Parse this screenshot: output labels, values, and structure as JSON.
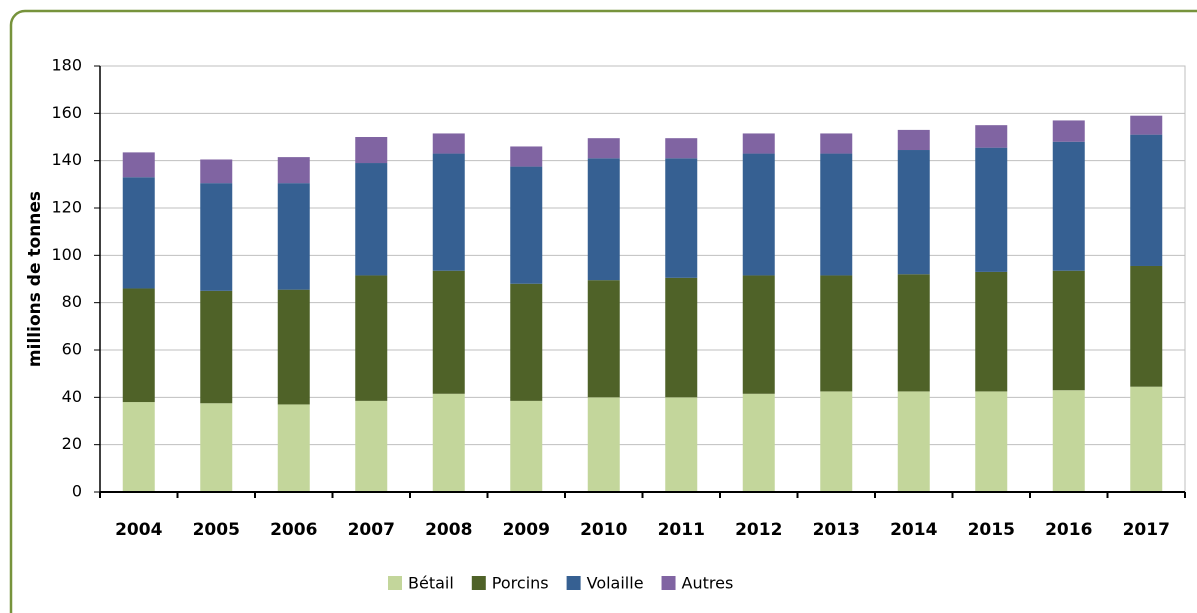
{
  "chart_data": {
    "type": "stacked_bar",
    "ylabel": "millions de tonnes",
    "categories": [
      "2004",
      "2005",
      "2006",
      "2007",
      "2008",
      "2009",
      "2010",
      "2011",
      "2012",
      "2013",
      "2014",
      "2015",
      "2016",
      "2017"
    ],
    "series": [
      {
        "name": "Bétail",
        "color": "#c3d69b",
        "values": [
          38,
          37.5,
          37,
          38.5,
          41.5,
          38.5,
          40,
          40,
          41.5,
          42.5,
          42.5,
          42.5,
          43,
          44.5
        ]
      },
      {
        "name": "Porcins",
        "color": "#4f6228",
        "values": [
          48,
          47.5,
          48.5,
          53,
          52,
          49.5,
          49.5,
          50.5,
          50,
          49,
          49.5,
          50.5,
          50.5,
          51
        ]
      },
      {
        "name": "Volaille",
        "color": "#366092",
        "values": [
          47,
          45.5,
          45,
          47.5,
          49.5,
          49.5,
          51.5,
          50.5,
          51.5,
          51.5,
          52.5,
          52.5,
          54.5,
          55.5
        ]
      },
      {
        "name": "Autres",
        "color": "#8064a2",
        "values": [
          10.5,
          10,
          11,
          11,
          8.5,
          8.5,
          8.5,
          8.5,
          8.5,
          8.5,
          8.5,
          9.5,
          9,
          8
        ]
      }
    ],
    "ylim": [
      0,
      180
    ],
    "yticks": [
      0,
      20,
      40,
      60,
      80,
      100,
      120,
      140,
      160,
      180
    ],
    "grid": true,
    "legend": "bottom"
  }
}
